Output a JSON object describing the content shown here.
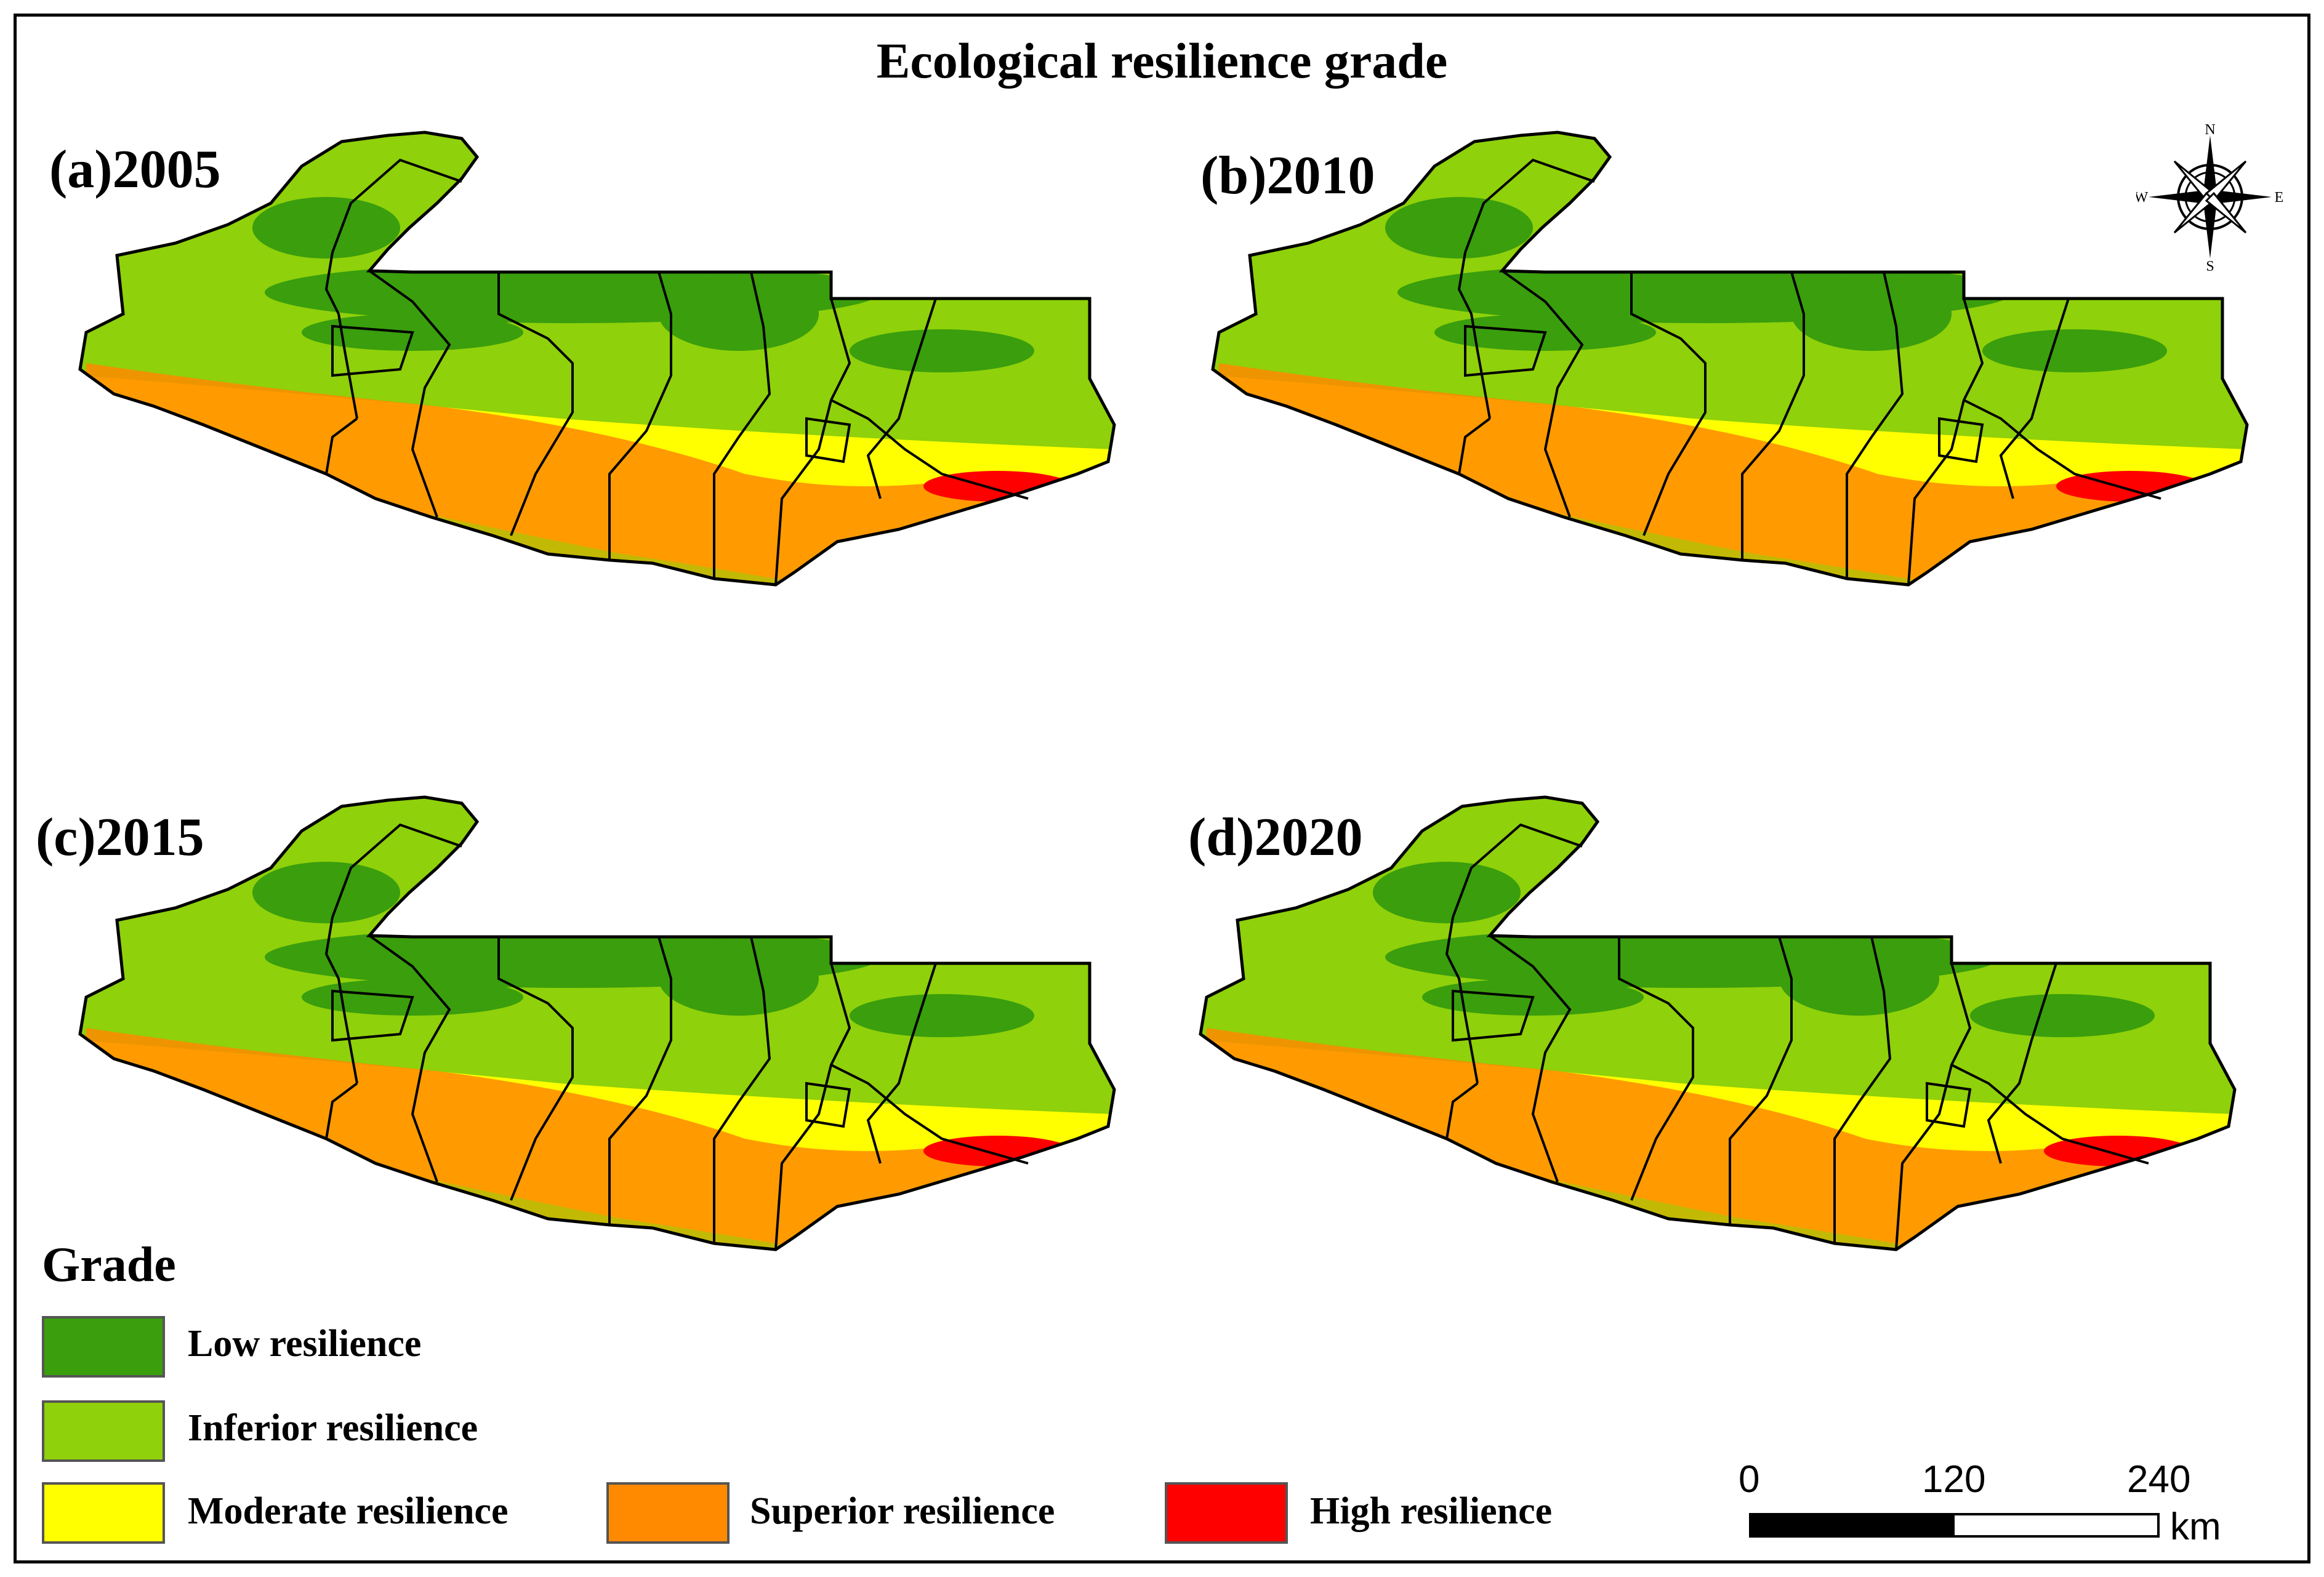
{
  "title": "Ecological resilience grade",
  "panels": [
    {
      "label": "(a)2005"
    },
    {
      "label": "(b)2010"
    },
    {
      "label": "(c)2015"
    },
    {
      "label": "(d)2020"
    }
  ],
  "legend": {
    "title": "Grade",
    "items": [
      {
        "label": "Low resilience",
        "color": "#3a9e0d"
      },
      {
        "label": "Inferior resilience",
        "color": "#8fd10a"
      },
      {
        "label": "Moderate resilience",
        "color": "#ffff00"
      },
      {
        "label": "Superior resilience",
        "color": "#ff8a00"
      },
      {
        "label": "High resilience",
        "color": "#ff0000"
      }
    ]
  },
  "compass": {
    "n": "N",
    "s": "S",
    "e": "E",
    "w": "W"
  },
  "scale_bar": {
    "ticks": [
      "0",
      "120",
      "240"
    ],
    "unit": "km"
  }
}
